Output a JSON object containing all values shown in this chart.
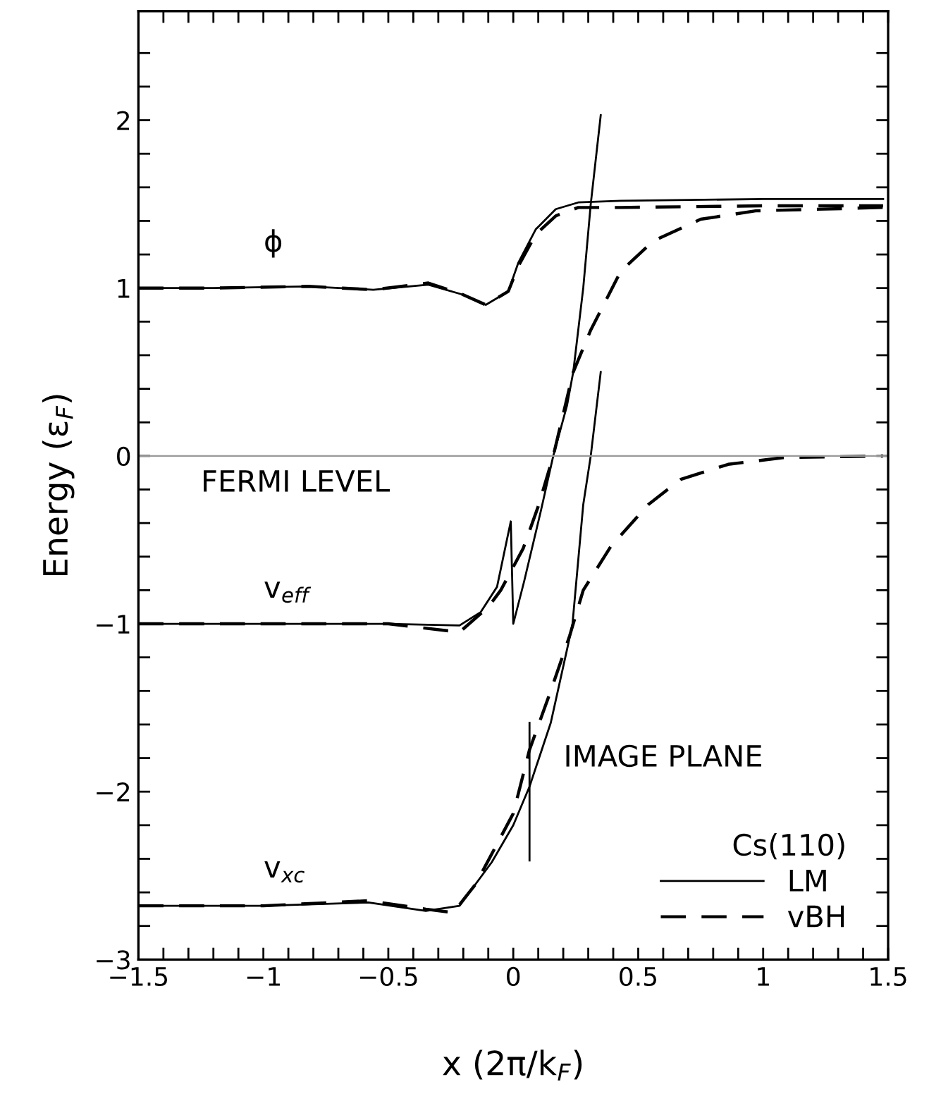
{
  "chart_data": {
    "type": "line",
    "xlabel": "x (2π/k$_{F}$)",
    "ylabel": "Energy (ε$_{F}$)",
    "legend_title": "Cs(110)",
    "legend": "bottom right",
    "grid": false,
    "marker": "none",
    "xlim": [
      -1.5,
      1.5
    ],
    "ylim": [
      -3,
      2.65
    ],
    "xticks": [
      -1.5,
      {
        "value": -1.4,
        "label": null
      },
      {
        "value": -1.3,
        "label": null
      },
      {
        "value": -1.2,
        "label": null
      },
      {
        "value": -1.1,
        "label": null
      },
      -1,
      {
        "value": -0.9,
        "label": null
      },
      {
        "value": -0.8,
        "label": null
      },
      {
        "value": -0.7,
        "label": null
      },
      {
        "value": -0.6,
        "label": null
      },
      -0.5,
      {
        "value": -0.4,
        "label": null
      },
      {
        "value": -0.3,
        "label": null
      },
      {
        "value": -0.2,
        "label": null
      },
      {
        "value": -0.1,
        "label": null
      },
      0,
      {
        "value": 0.1,
        "label": null
      },
      {
        "value": 0.2,
        "label": null
      },
      {
        "value": 0.3,
        "label": null
      },
      {
        "value": 0.4,
        "label": null
      },
      0.5,
      {
        "value": 0.6,
        "label": null
      },
      {
        "value": 0.7,
        "label": null
      },
      {
        "value": 0.8,
        "label": null
      },
      {
        "value": 0.9,
        "label": null
      },
      1,
      {
        "value": 1.1,
        "label": null
      },
      {
        "value": 1.2,
        "label": null
      },
      {
        "value": 1.3,
        "label": null
      },
      {
        "value": 1.4,
        "label": null
      },
      1.5
    ],
    "yticks": [
      -3,
      {
        "value": -2.8,
        "label": null
      },
      {
        "value": -2.6,
        "label": null
      },
      {
        "value": -2.4,
        "label": null
      },
      {
        "value": -2.2,
        "label": null
      },
      -2,
      {
        "value": -1.8,
        "label": null
      },
      {
        "value": -1.6,
        "label": null
      },
      {
        "value": -1.4,
        "label": null
      },
      {
        "value": -1.2,
        "label": null
      },
      -1,
      {
        "value": -0.8,
        "label": null
      },
      {
        "value": -0.6,
        "label": null
      },
      {
        "value": -0.4,
        "label": null
      },
      {
        "value": -0.2,
        "label": null
      },
      0,
      {
        "value": 0.2,
        "label": null
      },
      {
        "value": 0.4,
        "label": null
      },
      {
        "value": 0.6,
        "label": null
      },
      {
        "value": 0.8,
        "label": null
      },
      1,
      {
        "value": 1.2,
        "label": null
      },
      {
        "value": 1.4,
        "label": null
      },
      {
        "value": 1.6,
        "label": null
      },
      {
        "value": 1.8,
        "label": null
      },
      2,
      {
        "value": 2.2,
        "label": null
      },
      {
        "value": 2.4,
        "label": null
      }
    ],
    "ref_lines": [
      {
        "axis": "y",
        "value": 0,
        "label": "FERMI LEVEL",
        "color": "#999999",
        "line_style": "solid"
      }
    ],
    "series": [
      {
        "name": "LM",
        "color": "#000000",
        "line_style": "solid",
        "x": [
          -1.5,
          -1.2,
          -0.82,
          -0.56,
          -0.34,
          -0.2,
          -0.11,
          -0.02,
          0.02,
          0.09,
          0.17,
          0.26,
          0.43,
          1.0,
          1.48
        ],
        "values": [
          1.0,
          1.0,
          1.01,
          0.99,
          1.02,
          0.96,
          0.9,
          0.98,
          1.15,
          1.35,
          1.47,
          1.51,
          1.52,
          1.53,
          1.53
        ]
      },
      {
        "color": "#000000",
        "line_style": "dashed",
        "x": [
          -1.5,
          -1.2,
          -0.82,
          -0.56,
          -0.34,
          -0.2,
          -0.11,
          -0.02,
          0.02,
          0.09,
          0.17,
          0.26,
          0.43,
          1.0,
          1.48
        ],
        "values": [
          1.0,
          1.0,
          1.01,
          0.99,
          1.03,
          0.96,
          0.9,
          0.98,
          1.13,
          1.32,
          1.43,
          1.48,
          1.48,
          1.49,
          1.49
        ]
      },
      {
        "color": "#000000",
        "line_style": "solid",
        "x": [
          -1.5,
          -1.0,
          -0.5,
          -0.215,
          -0.13,
          -0.065,
          -0.01,
          0.0,
          0.043,
          0.11,
          0.16,
          0.215,
          0.24,
          0.28,
          0.31,
          0.35
        ],
        "values": [
          -1.0,
          -1.0,
          -1.0,
          -1.01,
          -0.93,
          -0.78,
          -0.39,
          -1.0,
          -0.75,
          -0.33,
          0.0,
          0.3,
          0.5,
          1.0,
          1.5,
          2.03
        ]
      },
      {
        "name": "vBH",
        "color": "#000000",
        "line_style": "dashed",
        "x": [
          -1.5,
          -1.0,
          -0.5,
          -0.215,
          -0.1,
          -0.05,
          0.04,
          0.1,
          0.16,
          0.24,
          0.31,
          0.43,
          0.56,
          0.75,
          0.97,
          1.48
        ],
        "values": [
          -1.0,
          -1.0,
          -1.0,
          -1.05,
          -0.9,
          -0.8,
          -0.55,
          -0.3,
          0.0,
          0.5,
          0.75,
          1.1,
          1.28,
          1.41,
          1.46,
          1.48
        ]
      },
      {
        "color": "#000000",
        "line_style": "solid",
        "x": [
          -1.5,
          -1.0,
          -0.58,
          -0.35,
          -0.215,
          -0.086,
          0.0,
          0.065,
          0.15,
          0.22,
          0.237,
          0.28,
          0.31,
          0.35
        ],
        "values": [
          -2.68,
          -2.68,
          -2.66,
          -2.71,
          -2.68,
          -2.42,
          -2.2,
          -1.97,
          -1.59,
          -1.12,
          -1.0,
          -0.29,
          0.0,
          0.5
        ]
      },
      {
        "color": "#000000",
        "line_style": "dashed",
        "x": [
          -1.5,
          -1.0,
          -0.58,
          -0.35,
          -0.24,
          -0.15,
          0.0,
          0.065,
          0.15,
          0.226,
          0.28,
          0.39,
          0.54,
          0.67,
          0.86,
          1.08,
          1.48
        ],
        "values": [
          -2.68,
          -2.68,
          -2.65,
          -2.7,
          -2.72,
          -2.55,
          -2.13,
          -1.75,
          -1.4,
          -1.07,
          -0.8,
          -0.54,
          -0.29,
          -0.14,
          -0.05,
          -0.01,
          0.0
        ]
      },
      {
        "color": "#000000",
        "line_style": "solid",
        "x": [
          0.065,
          0.065
        ],
        "values": [
          -1.59,
          -2.41
        ]
      }
    ],
    "annotations": [
      "ϕ",
      "v$_{eff}$",
      "v$_{xc}$",
      "IMAGE PLANE"
    ]
  }
}
